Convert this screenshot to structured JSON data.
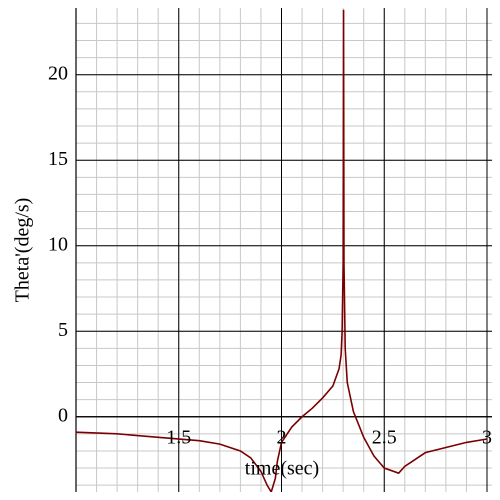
{
  "chart_data": {
    "type": "line",
    "xlabel": "time(sec)",
    "ylabel": "Theta'(deg/s)",
    "x": [
      1.0,
      1.2,
      1.4,
      1.6,
      1.7,
      1.8,
      1.85,
      1.9,
      1.93,
      1.95,
      1.97,
      1.98,
      2.0,
      2.05,
      2.1,
      2.15,
      2.2,
      2.25,
      2.28,
      2.29,
      2.295,
      2.3,
      2.302,
      2.304,
      2.31,
      2.32,
      2.35,
      2.4,
      2.45,
      2.5,
      2.57,
      2.6,
      2.7,
      2.8,
      2.9,
      3.0
    ],
    "values": [
      -0.9,
      -1.0,
      -1.2,
      -1.4,
      -1.6,
      -2.0,
      -2.4,
      -3.2,
      -4.0,
      -4.4,
      -3.6,
      -2.6,
      -1.5,
      -0.6,
      0.0,
      0.5,
      1.1,
      1.8,
      2.8,
      3.6,
      5.0,
      9.0,
      23.8,
      9.0,
      4.0,
      2.0,
      0.3,
      -1.2,
      -2.3,
      -3.0,
      -3.3,
      -2.9,
      -2.1,
      -1.8,
      -1.5,
      -1.3
    ],
    "color": "#7a0000",
    "xlim": [
      1,
      3
    ],
    "ylim": [
      -4.4,
      23.9
    ],
    "xticks": [
      1.5,
      2,
      2.5,
      3
    ],
    "yticks": [
      0,
      5,
      10,
      15,
      20
    ],
    "grid": true
  }
}
